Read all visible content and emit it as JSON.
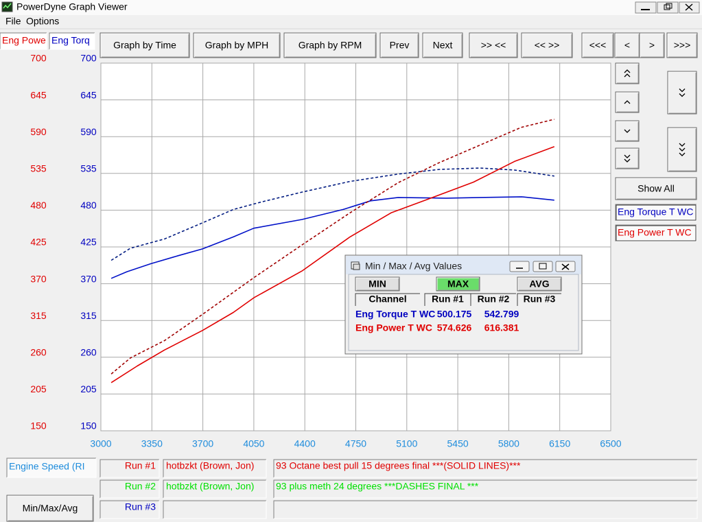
{
  "window": {
    "title": "PowerDyne Graph Viewer",
    "menu": [
      "File",
      "Options"
    ]
  },
  "toolbar": {
    "buttons": [
      "Graph by Time",
      "Graph by MPH",
      "Graph by RPM",
      "Prev",
      "Next",
      ">> <<",
      "<< >>",
      "<<<",
      "<",
      ">",
      ">>>"
    ]
  },
  "chart_data": {
    "type": "line",
    "ylabel": "Eng Powe",
    "y2label": "Eng Torq",
    "xlabel": "Engine Speed (RI",
    "ylabel_color": "#e00000",
    "y2label_color": "#0000c0",
    "xtick_color": "#1e8cdc",
    "xlim": [
      3000,
      6500
    ],
    "xticks": [
      3000,
      3350,
      3700,
      4050,
      4400,
      4750,
      5100,
      5450,
      5800,
      6150,
      6500
    ],
    "ylim": [
      150,
      700
    ],
    "yticks": [
      150,
      205,
      260,
      315,
      370,
      425,
      480,
      535,
      590,
      645,
      700
    ],
    "y2lim": [
      150,
      700
    ],
    "y2ticks": [
      150,
      205,
      260,
      315,
      370,
      425,
      480,
      535,
      590,
      645,
      700
    ],
    "grid": true,
    "series": [
      {
        "name": "Eng Torque T WC",
        "axis": "y2",
        "color": "#0000c0",
        "runs": [
          {
            "dashed": false,
            "color": "#0010c8",
            "x": [
              3071,
              3179,
              3344,
              3532,
              3697,
              3909,
              4050,
              4380,
              4663,
              4851,
              5040,
              5369,
              5605,
              5887,
              6113
            ],
            "values": [
              378,
              388,
              400,
              412,
              422,
              440,
              453,
              466,
              481,
              494,
              499,
              498,
              499,
              500,
              495
            ]
          },
          {
            "dashed": true,
            "color": "#001a80",
            "x": [
              3071,
              3203,
              3438,
              3697,
              3909,
              4097,
              4380,
              4710,
              5040,
              5322,
              5605,
              5840,
              6113
            ],
            "values": [
              405,
              423,
              437,
              461,
              481,
              492,
              507,
              523,
              534,
              541,
              543,
              540,
              531
            ]
          }
        ]
      },
      {
        "name": "Eng Power T WC",
        "axis": "y",
        "color": "#e00000",
        "runs": [
          {
            "dashed": false,
            "color": "#e00000",
            "x": [
              3071,
              3250,
              3438,
              3697,
              3909,
              4050,
              4380,
              4710,
              4992,
              5228,
              5558,
              5840,
              6113
            ],
            "values": [
              222,
              247,
              271,
              300,
              327,
              349,
              389,
              440,
              476,
              495,
              522,
              553,
              575
            ]
          },
          {
            "dashed": true,
            "color": "#a00000",
            "x": [
              3071,
              3203,
              3438,
              3697,
              4050,
              4380,
              4710,
              5040,
              5322,
              5652,
              5887,
              6113
            ],
            "values": [
              235,
              259,
              285,
              324,
              379,
              428,
              476,
              521,
              551,
              582,
              604,
              616
            ]
          }
        ]
      }
    ]
  },
  "side_panel": {
    "show_all": "Show All"
  },
  "dialog": {
    "title": "Min / Max / Avg Values",
    "buttons": [
      "MIN",
      "MAX",
      "AVG"
    ],
    "headers": [
      "Channel",
      "Run #1",
      "Run #2",
      "Run #3"
    ],
    "rows": [
      {
        "channel": "Eng Torque T WC",
        "color": "#0000c0",
        "values": [
          500.175,
          542.799
        ]
      },
      {
        "channel": "Eng Power T WC",
        "color": "#e00000",
        "values": [
          574.626,
          616.381
        ]
      }
    ]
  },
  "runs_panel": {
    "button": "Min/Max/Avg",
    "rows": [
      {
        "run": "Run #1",
        "color": "#e00000",
        "driver": "hotbzkt (Brown, Jon)",
        "description": "93 Octane best pull 15 degrees final ***(SOLID LINES)***"
      },
      {
        "run": "Run #2",
        "color": "#00e000",
        "driver": "hotbzkt (Brown, Jon)",
        "description": "93 plus meth 24 degrees ***DASHES FINAL ***"
      },
      {
        "run": "Run #3",
        "color": "#0000c0"
      }
    ]
  }
}
